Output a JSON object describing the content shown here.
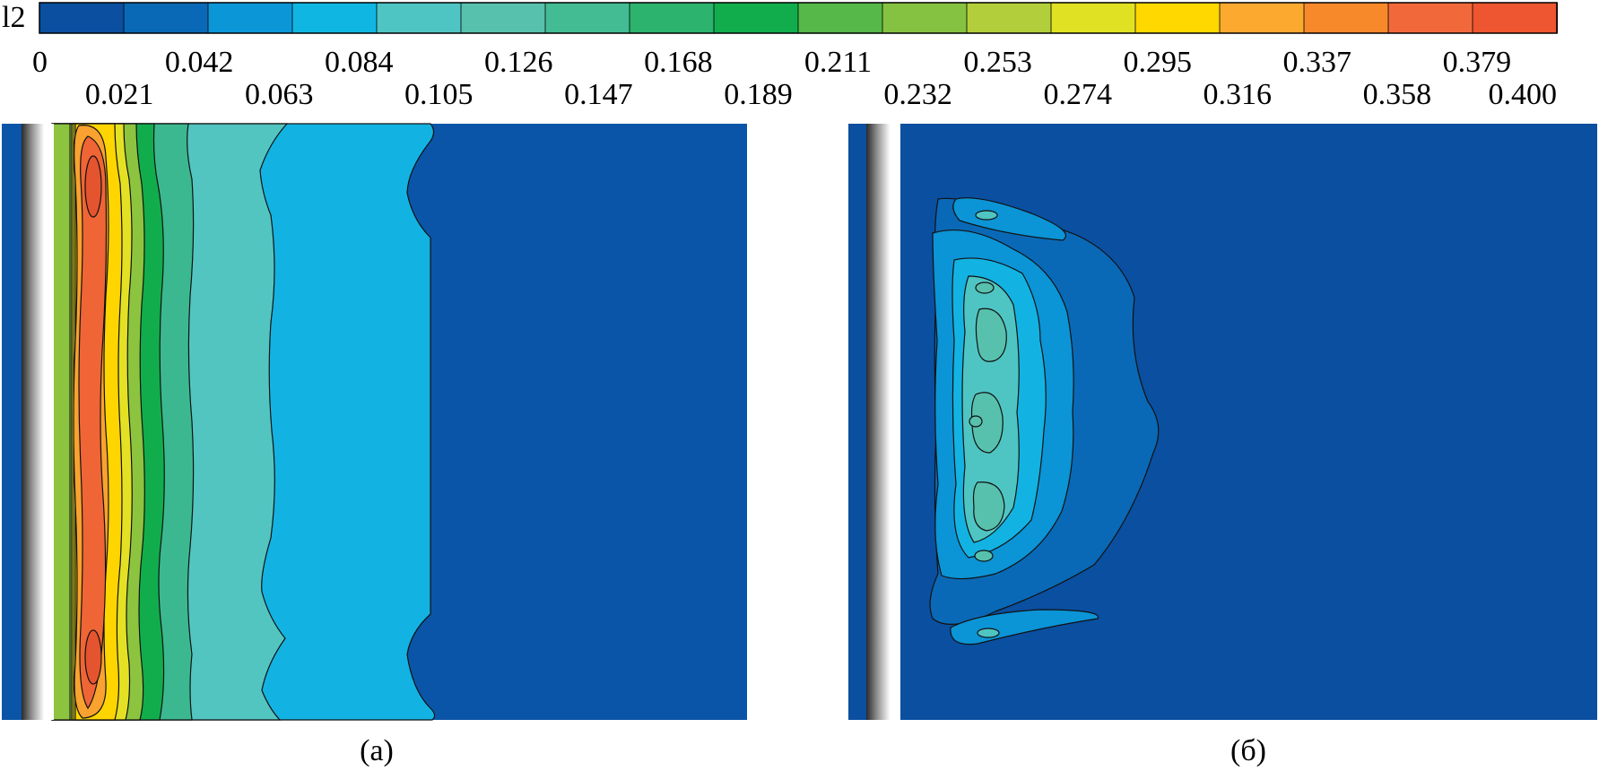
{
  "colorbar": {
    "variable": "l2",
    "labels_top": [
      "0",
      "0.042",
      "0.084",
      "0.126",
      "0.168",
      "0.211",
      "0.253",
      "0.295",
      "0.337",
      "0.379"
    ],
    "labels_bottom": [
      "0.021",
      "0.063",
      "0.105",
      "0.147",
      "0.189",
      "0.232",
      "0.274",
      "0.316",
      "0.358",
      "0.400"
    ],
    "colors": [
      "#0a4fa0",
      "#0a69b6",
      "#0b96d8",
      "#10b6e2",
      "#4fc5c3",
      "#57c1ad",
      "#43bc94",
      "#2cb36d",
      "#11ad4c",
      "#55b848",
      "#86c241",
      "#b2cf3b",
      "#e0e123",
      "#ffd800",
      "#fcaa2f",
      "#f7892b",
      "#f1693a",
      "#ed5630"
    ]
  },
  "panels": {
    "a": {
      "caption": "(а)"
    },
    "b": {
      "caption": "(б)"
    }
  }
}
